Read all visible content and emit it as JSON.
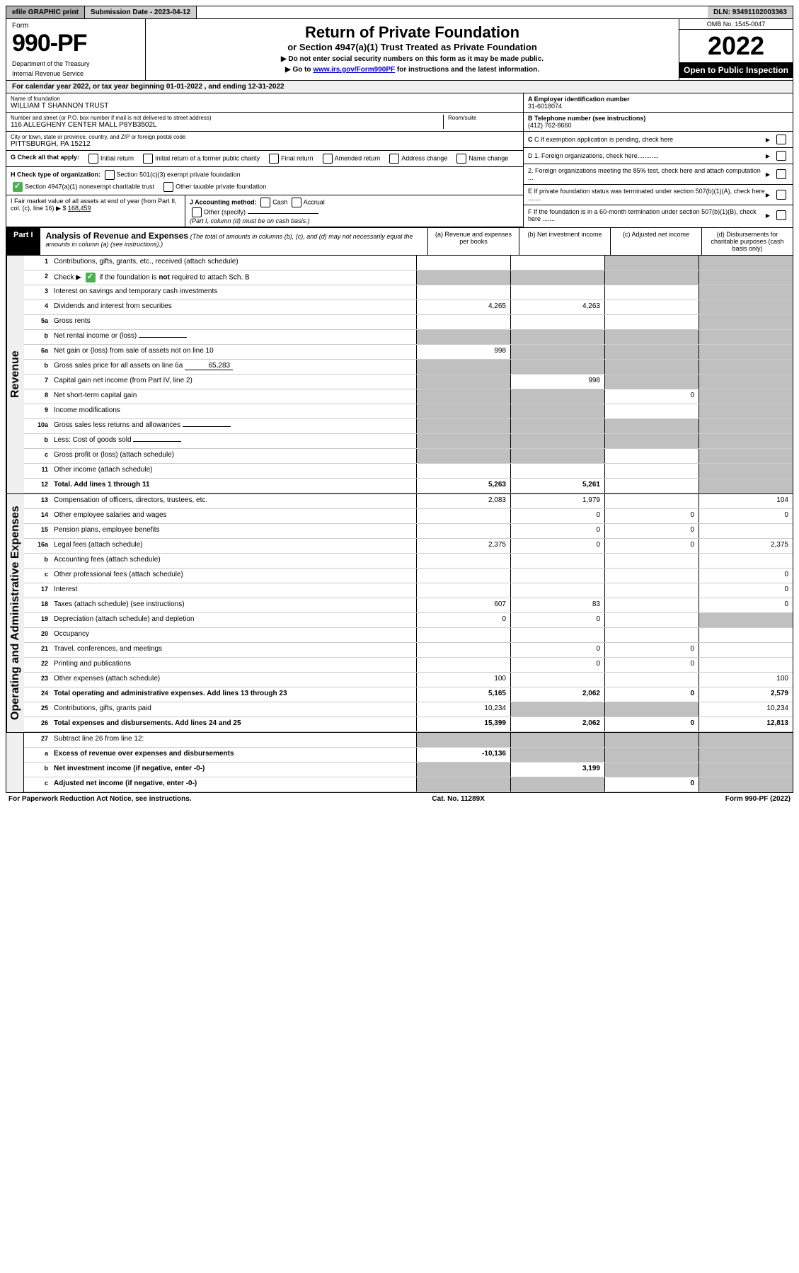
{
  "topbar": {
    "efile": "efile GRAPHIC print",
    "subdate_label": "Submission Date - ",
    "subdate": "2023-04-12",
    "dln_label": "DLN: ",
    "dln": "93491102003363"
  },
  "header": {
    "form_label": "Form",
    "form_number": "990-PF",
    "dept1": "Department of the Treasury",
    "dept2": "Internal Revenue Service",
    "title": "Return of Private Foundation",
    "subtitle": "or Section 4947(a)(1) Trust Treated as Private Foundation",
    "instr1": "▶ Do not enter social security numbers on this form as it may be made public.",
    "instr2_pre": "▶ Go to ",
    "instr2_link": "www.irs.gov/Form990PF",
    "instr2_post": " for instructions and the latest information.",
    "omb": "OMB No. 1545-0047",
    "year": "2022",
    "open": "Open to Public Inspection"
  },
  "cal_year": "For calendar year 2022, or tax year beginning 01-01-2022              , and ending 12-31-2022",
  "info": {
    "name_lbl": "Name of foundation",
    "name": "WILLIAM T SHANNON TRUST",
    "addr_lbl": "Number and street (or P.O. box number if mail is not delivered to street address)",
    "addr": "116 ALLEGHENY CENTER MALL P8YB3502L",
    "room_lbl": "Room/suite",
    "city_lbl": "City or town, state or province, country, and ZIP or foreign postal code",
    "city": "PITTSBURGH, PA  15212",
    "ein_lbl": "A Employer identification number",
    "ein": "31-6018074",
    "phone_lbl": "B Telephone number (see instructions)",
    "phone": "(412) 762-8660",
    "c_lbl": "C If exemption application is pending, check here",
    "d1_lbl": "D 1. Foreign organizations, check here............",
    "d2_lbl": "2. Foreign organizations meeting the 85% test, check here and attach computation ...",
    "e_lbl": "E If private foundation status was terminated under section 507(b)(1)(A), check here .......",
    "f_lbl": "F If the foundation is in a 60-month termination under section 507(b)(1)(B), check here .......",
    "g_lbl": "G Check all that apply:",
    "g_opts": [
      "Initial return",
      "Initial return of a former public charity",
      "Final return",
      "Amended return",
      "Address change",
      "Name change"
    ],
    "h_lbl": "H Check type of organization:",
    "h_opt1": "Section 501(c)(3) exempt private foundation",
    "h_opt2": "Section 4947(a)(1) nonexempt charitable trust",
    "h_opt3": "Other taxable private foundation",
    "i_lbl": "I Fair market value of all assets at end of year (from Part II, col. (c), line 16) ▶ $",
    "i_val": "168,459",
    "j_lbl": "J Accounting method:",
    "j_cash": "Cash",
    "j_accrual": "Accrual",
    "j_other": "Other (specify)",
    "j_note": "(Part I, column (d) must be on cash basis.)"
  },
  "part1": {
    "label": "Part I",
    "title": "Analysis of Revenue and Expenses",
    "title_note": "(The total of amounts in columns (b), (c), and (d) may not necessarily equal the amounts in column (a) (see instructions).)",
    "col_a": "(a) Revenue and expenses per books",
    "col_b": "(b) Net investment income",
    "col_c": "(c) Adjusted net income",
    "col_d": "(d) Disbursements for charitable purposes (cash basis only)"
  },
  "sections": {
    "revenue": "Revenue",
    "expenses": "Operating and Administrative Expenses"
  },
  "rows": [
    {
      "n": "1",
      "d": "Contributions, gifts, grants, etc., received (attach schedule)",
      "a": "",
      "b": "",
      "c": "grey",
      "dd": "grey"
    },
    {
      "n": "2",
      "d": "Check ▶ ☑ if the foundation is not required to attach Sch. B",
      "a": "grey",
      "b": "grey",
      "c": "grey",
      "dd": "grey",
      "checkmark": true
    },
    {
      "n": "3",
      "d": "Interest on savings and temporary cash investments",
      "a": "",
      "b": "",
      "c": "",
      "dd": "grey"
    },
    {
      "n": "4",
      "d": "Dividends and interest from securities",
      "a": "4,265",
      "b": "4,263",
      "c": "",
      "dd": "grey"
    },
    {
      "n": "5a",
      "d": "Gross rents",
      "a": "",
      "b": "",
      "c": "",
      "dd": "grey"
    },
    {
      "n": "b",
      "d": "Net rental income or (loss)",
      "a": "grey",
      "b": "grey",
      "c": "grey",
      "dd": "grey",
      "inline": ""
    },
    {
      "n": "6a",
      "d": "Net gain or (loss) from sale of assets not on line 10",
      "a": "998",
      "b": "grey",
      "c": "grey",
      "dd": "grey"
    },
    {
      "n": "b",
      "d": "Gross sales price for all assets on line 6a",
      "a": "grey",
      "b": "grey",
      "c": "grey",
      "dd": "grey",
      "inline": "65,283"
    },
    {
      "n": "7",
      "d": "Capital gain net income (from Part IV, line 2)",
      "a": "grey",
      "b": "998",
      "c": "grey",
      "dd": "grey"
    },
    {
      "n": "8",
      "d": "Net short-term capital gain",
      "a": "grey",
      "b": "grey",
      "c": "0",
      "dd": "grey"
    },
    {
      "n": "9",
      "d": "Income modifications",
      "a": "grey",
      "b": "grey",
      "c": "",
      "dd": "grey"
    },
    {
      "n": "10a",
      "d": "Gross sales less returns and allowances",
      "a": "grey",
      "b": "grey",
      "c": "grey",
      "dd": "grey",
      "inline": ""
    },
    {
      "n": "b",
      "d": "Less: Cost of goods sold",
      "a": "grey",
      "b": "grey",
      "c": "grey",
      "dd": "grey",
      "inline": ""
    },
    {
      "n": "c",
      "d": "Gross profit or (loss) (attach schedule)",
      "a": "grey",
      "b": "grey",
      "c": "",
      "dd": "grey"
    },
    {
      "n": "11",
      "d": "Other income (attach schedule)",
      "a": "",
      "b": "",
      "c": "",
      "dd": "grey"
    },
    {
      "n": "12",
      "d": "Total. Add lines 1 through 11",
      "a": "5,263",
      "b": "5,261",
      "c": "",
      "dd": "grey",
      "bold": true
    }
  ],
  "exp_rows": [
    {
      "n": "13",
      "d": "Compensation of officers, directors, trustees, etc.",
      "a": "2,083",
      "b": "1,979",
      "c": "",
      "dd": "104"
    },
    {
      "n": "14",
      "d": "Other employee salaries and wages",
      "a": "",
      "b": "0",
      "c": "0",
      "dd": "0"
    },
    {
      "n": "15",
      "d": "Pension plans, employee benefits",
      "a": "",
      "b": "0",
      "c": "0",
      "dd": ""
    },
    {
      "n": "16a",
      "d": "Legal fees (attach schedule)",
      "a": "2,375",
      "b": "0",
      "c": "0",
      "dd": "2,375"
    },
    {
      "n": "b",
      "d": "Accounting fees (attach schedule)",
      "a": "",
      "b": "",
      "c": "",
      "dd": ""
    },
    {
      "n": "c",
      "d": "Other professional fees (attach schedule)",
      "a": "",
      "b": "",
      "c": "",
      "dd": "0"
    },
    {
      "n": "17",
      "d": "Interest",
      "a": "",
      "b": "",
      "c": "",
      "dd": "0"
    },
    {
      "n": "18",
      "d": "Taxes (attach schedule) (see instructions)",
      "a": "607",
      "b": "83",
      "c": "",
      "dd": "0"
    },
    {
      "n": "19",
      "d": "Depreciation (attach schedule) and depletion",
      "a": "0",
      "b": "0",
      "c": "",
      "dd": "grey"
    },
    {
      "n": "20",
      "d": "Occupancy",
      "a": "",
      "b": "",
      "c": "",
      "dd": ""
    },
    {
      "n": "21",
      "d": "Travel, conferences, and meetings",
      "a": "",
      "b": "0",
      "c": "0",
      "dd": ""
    },
    {
      "n": "22",
      "d": "Printing and publications",
      "a": "",
      "b": "0",
      "c": "0",
      "dd": ""
    },
    {
      "n": "23",
      "d": "Other expenses (attach schedule)",
      "a": "100",
      "b": "",
      "c": "",
      "dd": "100"
    },
    {
      "n": "24",
      "d": "Total operating and administrative expenses. Add lines 13 through 23",
      "a": "5,165",
      "b": "2,062",
      "c": "0",
      "dd": "2,579",
      "bold": true
    },
    {
      "n": "25",
      "d": "Contributions, gifts, grants paid",
      "a": "10,234",
      "b": "grey",
      "c": "grey",
      "dd": "10,234"
    },
    {
      "n": "26",
      "d": "Total expenses and disbursements. Add lines 24 and 25",
      "a": "15,399",
      "b": "2,062",
      "c": "0",
      "dd": "12,813",
      "bold": true
    }
  ],
  "bottom_rows": [
    {
      "n": "27",
      "d": "Subtract line 26 from line 12:",
      "a": "grey",
      "b": "grey",
      "c": "grey",
      "dd": "grey"
    },
    {
      "n": "a",
      "d": "Excess of revenue over expenses and disbursements",
      "a": "-10,136",
      "b": "grey",
      "c": "grey",
      "dd": "grey",
      "bold": true
    },
    {
      "n": "b",
      "d": "Net investment income (if negative, enter -0-)",
      "a": "grey",
      "b": "3,199",
      "c": "grey",
      "dd": "grey",
      "bold": true
    },
    {
      "n": "c",
      "d": "Adjusted net income (if negative, enter -0-)",
      "a": "grey",
      "b": "grey",
      "c": "0",
      "dd": "grey",
      "bold": true
    }
  ],
  "footer": {
    "left": "For Paperwork Reduction Act Notice, see instructions.",
    "mid": "Cat. No. 11289X",
    "right": "Form 990-PF (2022)"
  }
}
